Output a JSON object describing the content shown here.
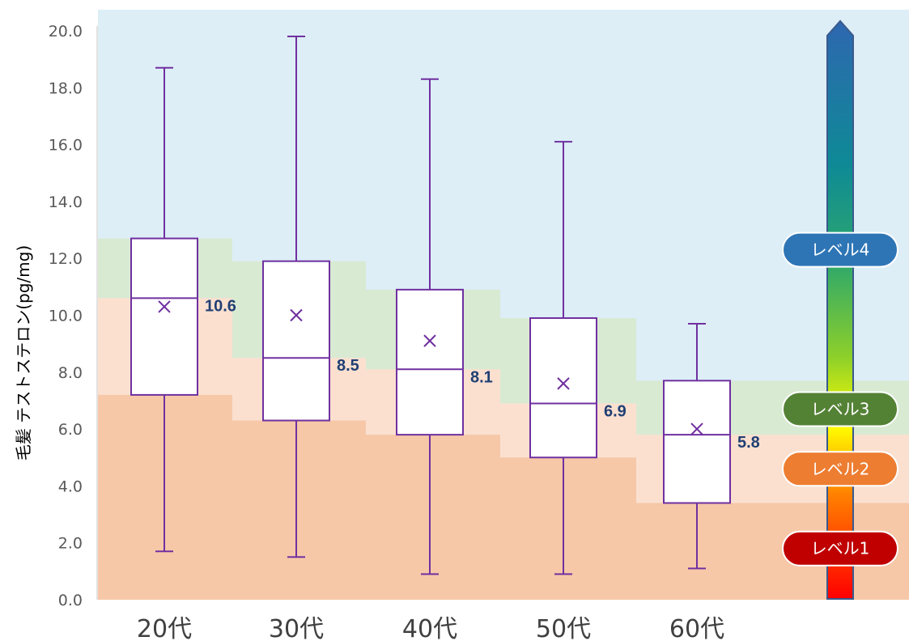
{
  "chart_data": {
    "type": "box",
    "ylabel": "毛髪 テストステロン(pg/mg)",
    "ylim": [
      0,
      20
    ],
    "yticks": [
      "0.0",
      "2.0",
      "4.0",
      "6.0",
      "8.0",
      "10.0",
      "12.0",
      "14.0",
      "16.0",
      "18.0",
      "20.0"
    ],
    "categories": [
      "20代",
      "30代",
      "40代",
      "50代",
      "60代"
    ],
    "boxes": [
      {
        "category": "20代",
        "min": 1.7,
        "q1": 7.2,
        "median": 10.6,
        "q3": 12.7,
        "max": 18.7,
        "mean": 10.3,
        "median_label": "10.6"
      },
      {
        "category": "30代",
        "min": 1.5,
        "q1": 6.3,
        "median": 8.5,
        "q3": 11.9,
        "max": 19.8,
        "mean": 10.0,
        "median_label": "8.5"
      },
      {
        "category": "40代",
        "min": 0.9,
        "q1": 5.8,
        "median": 8.1,
        "q3": 10.9,
        "max": 18.3,
        "mean": 9.1,
        "median_label": "8.1"
      },
      {
        "category": "50代",
        "min": 0.9,
        "q1": 5.0,
        "median": 6.9,
        "q3": 9.9,
        "max": 16.1,
        "mean": 7.6,
        "median_label": "6.9"
      },
      {
        "category": "60代",
        "min": 1.1,
        "q1": 3.4,
        "median": 5.8,
        "q3": 7.7,
        "max": 9.7,
        "mean": 6.0,
        "median_label": "5.8"
      }
    ],
    "background_bands": {
      "level1_upper": [
        7.2,
        6.3,
        5.8,
        5.0,
        3.4,
        3.4
      ],
      "level2_upper": [
        10.6,
        8.5,
        8.1,
        6.9,
        5.8,
        5.8
      ],
      "level3_upper": [
        12.7,
        11.9,
        10.9,
        9.9,
        7.7,
        7.7
      ]
    },
    "levels": [
      {
        "label": "レベル4",
        "value": 12.3,
        "color": "#2e75b6"
      },
      {
        "label": "レベル3",
        "value": 6.7,
        "color": "#548235"
      },
      {
        "label": "レベル2",
        "value": 4.6,
        "color": "#ed7d31"
      },
      {
        "label": "レベル1",
        "value": 1.8,
        "color": "#c00000"
      }
    ],
    "colors": {
      "level4_band": "#ddeef7",
      "level3_band": "#d9ead3",
      "level2_band": "#fbe0d0",
      "level1_band": "#f6c8a8",
      "box_stroke": "#7030a0",
      "median_label": "#1f3f73"
    },
    "grid": false,
    "legend": "right"
  }
}
